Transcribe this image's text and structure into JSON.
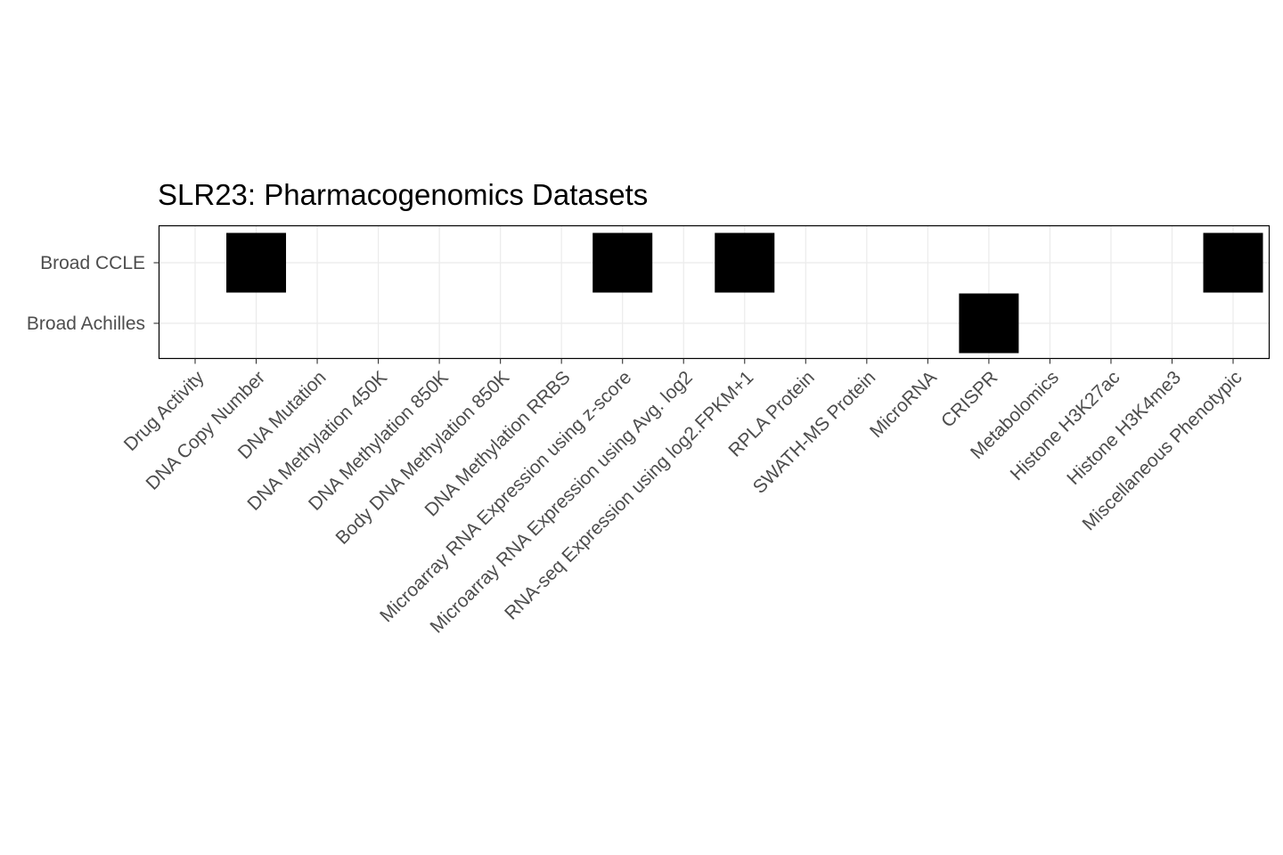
{
  "chart_data": {
    "type": "heatmap",
    "title": "SLR23: Pharmacogenomics Datasets",
    "xlabel": "",
    "ylabel": "",
    "x_categories": [
      "Drug Activity",
      "DNA Copy Number",
      "DNA Mutation",
      "DNA Methylation 450K",
      "DNA Methylation 850K",
      "Body DNA Methylation 850K",
      "DNA Methylation RRBS",
      "Microarray RNA Expression using z-score",
      "Microarray RNA Expression using Avg. log2",
      "RNA-seq Expression using log2.FPKM+1",
      "RPLA Protein",
      "SWATH-MS Protein",
      "MicroRNA",
      "CRISPR",
      "Metabolomics",
      "Histone H3K27ac",
      "Histone H3K4me3",
      "Miscellaneous Phenotypic"
    ],
    "y_categories": [
      "Broad CCLE",
      "Broad Achilles"
    ],
    "cells": [
      {
        "y": "Broad CCLE",
        "x": "DNA Copy Number",
        "present": true
      },
      {
        "y": "Broad CCLE",
        "x": "Microarray RNA Expression using z-score",
        "present": true
      },
      {
        "y": "Broad CCLE",
        "x": "RNA-seq Expression using log2.FPKM+1",
        "present": true
      },
      {
        "y": "Broad CCLE",
        "x": "Miscellaneous Phenotypic",
        "present": true
      },
      {
        "y": "Broad Achilles",
        "x": "CRISPR",
        "present": true
      }
    ],
    "fill_color": "#000000",
    "grid": true,
    "legend": "none"
  }
}
